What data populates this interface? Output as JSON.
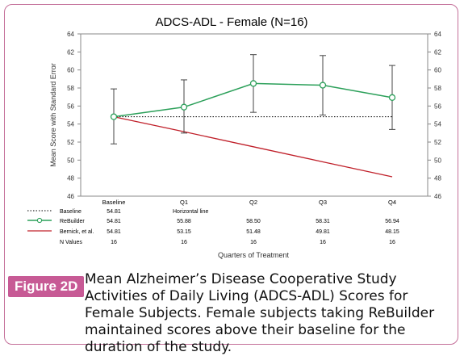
{
  "chart_data": {
    "type": "line",
    "title": "ADCS-ADL - Female (N=16)",
    "ylabel": "Mean Score with Standard Error",
    "xlabel": "Quarters of Treatment",
    "ylim": [
      46,
      64
    ],
    "yticks": [
      46,
      48,
      50,
      52,
      54,
      56,
      58,
      60,
      62,
      64
    ],
    "categories": [
      "Baseline",
      "Q1",
      "Q2",
      "Q3",
      "Q4"
    ],
    "series": [
      {
        "name": "Baseline",
        "style": "dotted",
        "color": "#000000",
        "values": [
          54.81,
          54.81,
          54.81,
          54.81,
          54.81
        ],
        "table_values": [
          "54.81",
          "Horizontal line",
          "",
          "",
          ""
        ]
      },
      {
        "name": "ReBuilder",
        "style": "solid-marker",
        "color": "#2ca05a",
        "values": [
          54.81,
          55.88,
          58.5,
          58.31,
          56.94
        ],
        "error_low": [
          51.8,
          53.0,
          55.3,
          55.0,
          53.4
        ],
        "error_high": [
          57.9,
          58.9,
          61.7,
          61.6,
          60.5
        ],
        "table_values": [
          "54.81",
          "55.88",
          "58.50",
          "58.31",
          "56.94"
        ]
      },
      {
        "name": "Bernick, et al.",
        "style": "solid",
        "color": "#c0202a",
        "values": [
          54.81,
          53.15,
          51.48,
          49.81,
          48.15
        ],
        "table_values": [
          "54.81",
          "53.15",
          "51.48",
          "49.81",
          "48.15"
        ]
      }
    ],
    "n_values_label": "N Values",
    "n_values": [
      "16",
      "16",
      "16",
      "16",
      "16"
    ],
    "grid": false,
    "legend": "table-below"
  },
  "caption": {
    "label": "Figure 2D",
    "text": "Mean Alzheimer’s Disease Cooperative Study Activities of Daily Living (ADCS-ADL) Scores for Female Subjects. Female subjects taking ReBuilder maintained scores above their baseline for the duration of the study."
  }
}
